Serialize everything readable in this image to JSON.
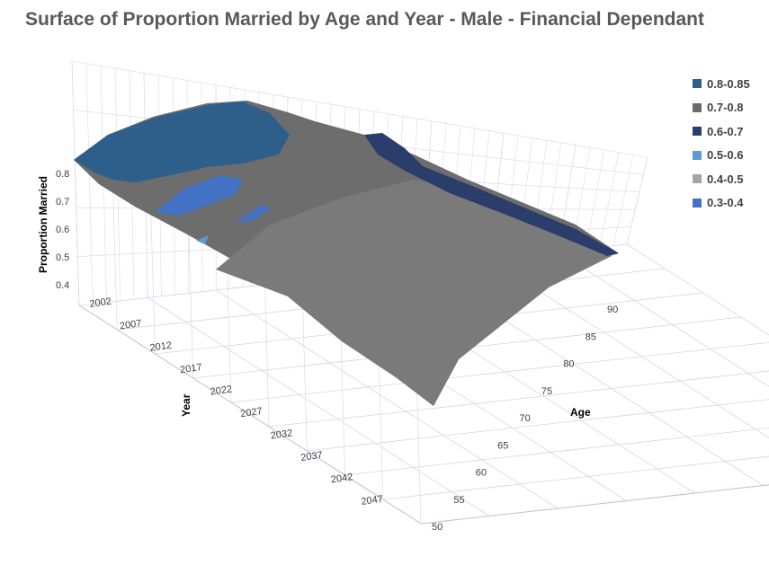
{
  "chart_data": {
    "type": "surface",
    "title": "Surface of Proportion Married by Age and Year - Male - Financial Dependant",
    "zlabel": "Proportion Married",
    "xlabel": "Year",
    "ylabel": "Age",
    "zlim": [
      0.4,
      0.8
    ],
    "z_ticks": [
      "0.8",
      "0.7",
      "0.6",
      "0.5",
      "0.4"
    ],
    "year_ticks": [
      "2002",
      "2007",
      "2012",
      "2017",
      "2022",
      "2027",
      "2032",
      "2037",
      "2042",
      "2047"
    ],
    "age_ticks": [
      "50",
      "55",
      "60",
      "65",
      "70",
      "75",
      "80",
      "85",
      "90"
    ],
    "legend": [
      {
        "label": "0.8-0.85",
        "color": "#2e5f8a"
      },
      {
        "label": "0.7-0.8",
        "color": "#6b6b6b"
      },
      {
        "label": "0.6-0.7",
        "color": "#2b3d6b"
      },
      {
        "label": "0.5-0.6",
        "color": "#5b9bd5"
      },
      {
        "label": "0.4-0.5",
        "color": "#a5a5a5"
      },
      {
        "label": "0.3-0.4",
        "color": "#4472c4"
      }
    ],
    "corner_values": [
      {
        "year": "2002",
        "age": "50",
        "value": 0.78
      },
      {
        "year": "2002",
        "age": "90",
        "value": 0.7
      },
      {
        "year": "2047",
        "age": "90",
        "value": 0.74
      },
      {
        "year": "2047",
        "age": "50",
        "value": 0.45
      }
    ],
    "grid": true
  }
}
